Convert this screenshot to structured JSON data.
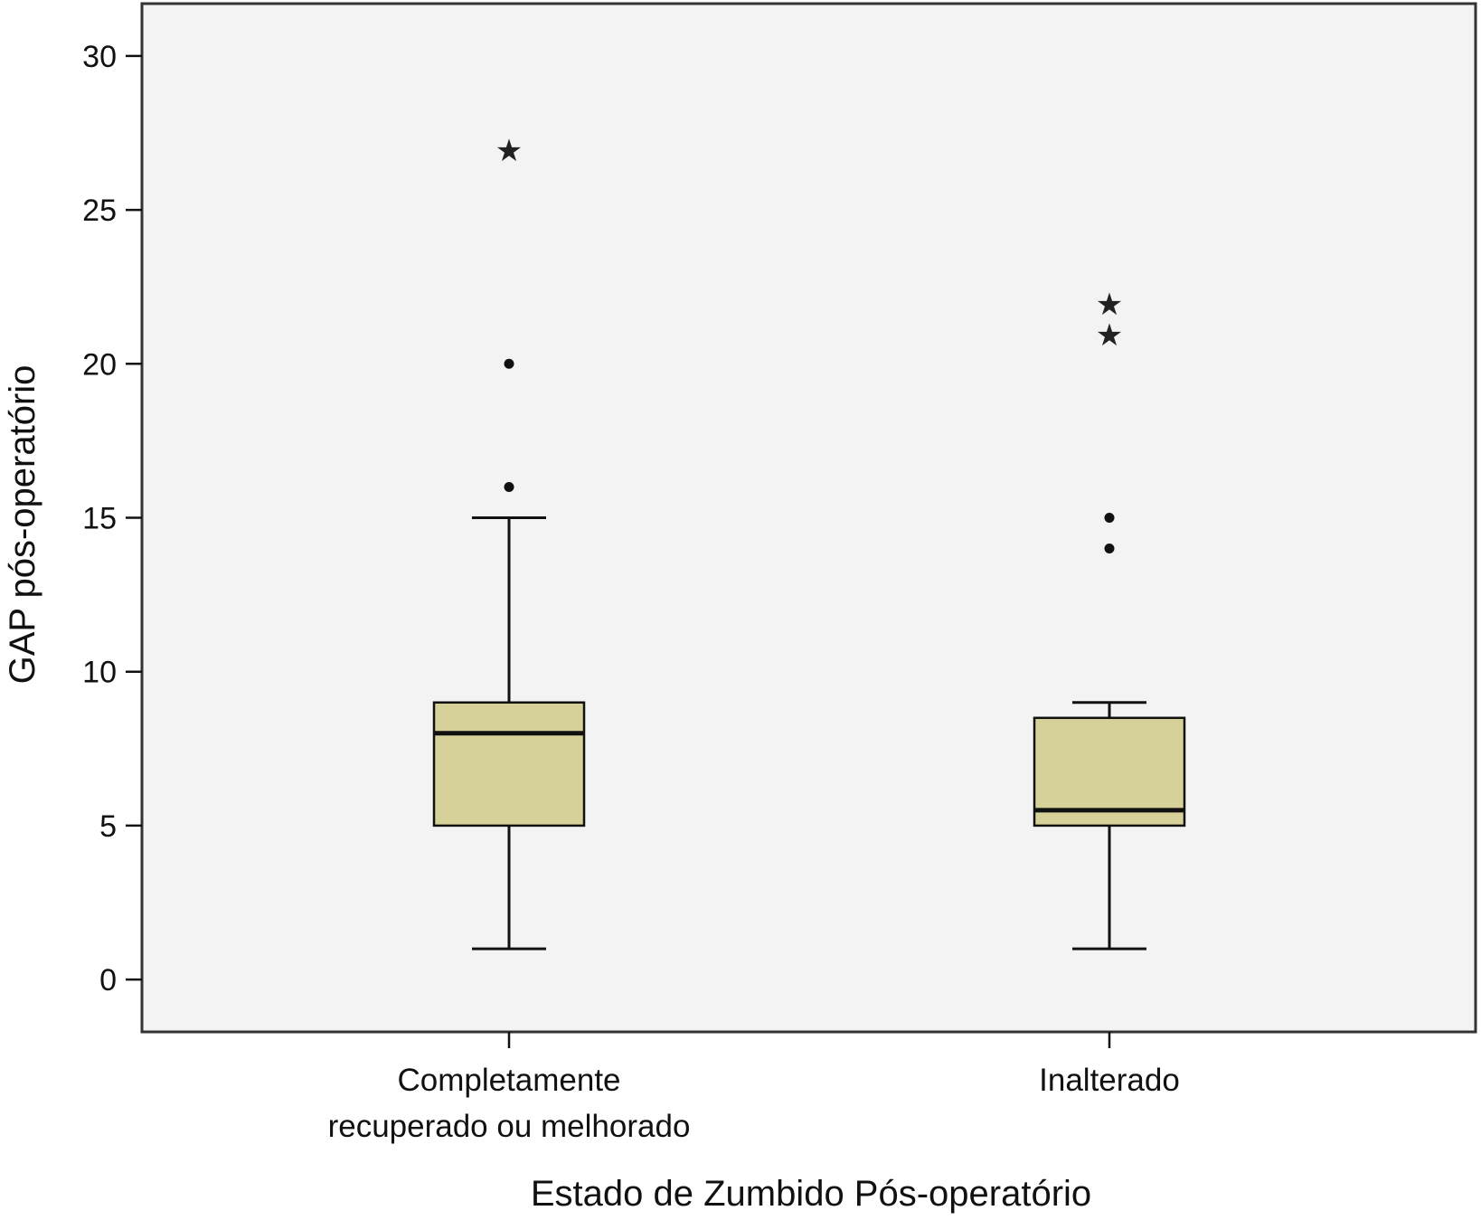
{
  "chart_data": {
    "type": "boxplot",
    "title": "",
    "xlabel": "Estado de Zumbido Pós-operatório",
    "ylabel": "GAP pós-operatório",
    "ylim": [
      -1.7,
      31.7
    ],
    "yticks": [
      0,
      5,
      10,
      15,
      20,
      25,
      30
    ],
    "grid": false,
    "categories": [
      {
        "line1": "Completamente",
        "line2": "recuperado ou melhorado"
      },
      {
        "line1": "Inalterado",
        "line2": ""
      }
    ],
    "boxes": [
      {
        "whisker_low": 1,
        "q1": 5,
        "median": 8,
        "q3": 9,
        "whisker_high": 15,
        "outliers": [
          16,
          20
        ],
        "extremes": [
          27
        ]
      },
      {
        "whisker_low": 1,
        "q1": 5,
        "median": 5.5,
        "q3": 8.5,
        "whisker_high": 9,
        "outliers": [
          14,
          15
        ],
        "extremes": [
          21,
          22
        ]
      }
    ],
    "colors": {
      "plot_bg": "#f3f3f3",
      "box_fill": "#d6d198",
      "stroke": "#111111"
    }
  }
}
